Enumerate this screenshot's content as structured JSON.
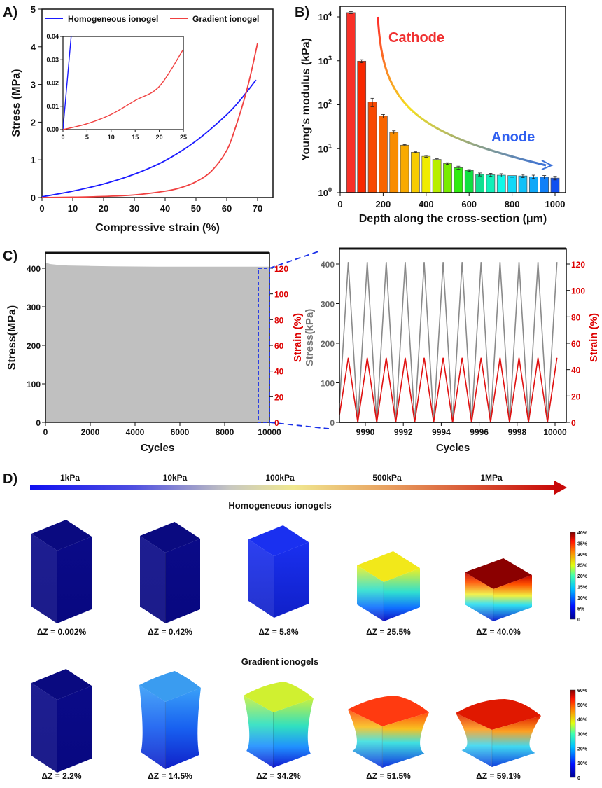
{
  "panel_labels": {
    "a": "A)",
    "b": "B)",
    "c": "C)",
    "d": "D)"
  },
  "chart_data": [
    {
      "id": "A",
      "type": "line",
      "xlabel": "Compressive strain (%)",
      "ylabel": "Stress (MPa)",
      "xlim": [
        0,
        75
      ],
      "ylim": [
        0,
        5
      ],
      "xticks": [
        0,
        10,
        20,
        30,
        40,
        50,
        60,
        70
      ],
      "yticks": [
        0,
        1,
        2,
        3,
        4,
        5
      ],
      "legend_position": "top",
      "series": [
        {
          "name": "Homogeneous ionogel",
          "color": "#1a1aff",
          "x": [
            0,
            10,
            20,
            30,
            40,
            50,
            60,
            65,
            69.5
          ],
          "y": [
            0.02,
            0.17,
            0.36,
            0.62,
            0.98,
            1.5,
            2.2,
            2.65,
            3.12
          ]
        },
        {
          "name": "Gradient ionogel",
          "color": "#f04040",
          "x": [
            0,
            10,
            20,
            30,
            40,
            45,
            50,
            55,
            60,
            63,
            66,
            68,
            70
          ],
          "y": [
            0,
            0.01,
            0.03,
            0.07,
            0.17,
            0.26,
            0.42,
            0.7,
            1.25,
            1.9,
            2.7,
            3.35,
            4.1
          ]
        }
      ],
      "inset": {
        "xlim": [
          0,
          25
        ],
        "ylim": [
          0,
          0.04
        ],
        "xticks": [
          0,
          5,
          10,
          15,
          20,
          25
        ],
        "yticks": [
          "0.00",
          "0.01",
          "0.02",
          "0.03",
          "0.04"
        ],
        "series": [
          {
            "name": "Homogeneous ionogel",
            "x": [
              0,
              1.7
            ],
            "y": [
              0,
              0.04
            ]
          },
          {
            "name": "Gradient ionogel",
            "x": [
              0,
              5,
              10,
              15,
              20,
              25
            ],
            "y": [
              0,
              0.0025,
              0.0065,
              0.0125,
              0.0185,
              0.0345
            ]
          }
        ]
      }
    },
    {
      "id": "B",
      "type": "bar",
      "xlabel": "Depth along the cross-section (μm)",
      "ylabel": "Young's modulus (kPa)",
      "yscale": "log",
      "xlim": [
        0,
        1050
      ],
      "ylim": [
        1,
        17000
      ],
      "xticks": [
        0,
        200,
        400,
        600,
        800,
        1000
      ],
      "yticks": [
        {
          "base": "10",
          "exp": "0"
        },
        {
          "base": "10",
          "exp": "1"
        },
        {
          "base": "10",
          "exp": "2"
        },
        {
          "base": "10",
          "exp": "3"
        },
        {
          "base": "10",
          "exp": "4"
        }
      ],
      "x": [
        50,
        100,
        150,
        200,
        250,
        300,
        350,
        400,
        450,
        500,
        550,
        600,
        650,
        700,
        750,
        800,
        850,
        900,
        950,
        1000
      ],
      "values": [
        12500,
        980,
        115,
        55,
        23.5,
        12,
        8.3,
        6.7,
        5.7,
        4.6,
        3.7,
        3.2,
        2.6,
        2.55,
        2.5,
        2.45,
        2.4,
        2.3,
        2.25,
        2.15
      ],
      "errors": [
        700,
        80,
        25,
        5,
        2,
        0.4,
        0.2,
        0.3,
        0.2,
        0.2,
        0.3,
        0.15,
        0.2,
        0.2,
        0.2,
        0.2,
        0.2,
        0.2,
        0.2,
        0.2
      ],
      "colors": [
        "#f83028",
        "#f82800",
        "#f84800",
        "#f86400",
        "#f88c00",
        "#f8aa00",
        "#f8cc00",
        "#f0ec00",
        "#b8ee00",
        "#78ec00",
        "#30ec10",
        "#10e040",
        "#10e090",
        "#10f0b8",
        "#10f8e8",
        "#10d8f8",
        "#10c0f8",
        "#10a8f8",
        "#1080f8",
        "#1050f0"
      ],
      "annotations": [
        {
          "text": "Cathode",
          "color": "#f03030"
        },
        {
          "text": "Anode",
          "color": "#2f5ff0"
        }
      ]
    },
    {
      "id": "C-left",
      "type": "area",
      "xlabel": "Cycles",
      "ylabel": "Stress(MPa)",
      "y2label": "Strain (%)",
      "xlim": [
        0,
        10000
      ],
      "ylim": [
        0,
        440
      ],
      "y2lim": [
        0,
        132
      ],
      "xticks": [
        0,
        2000,
        4000,
        6000,
        8000,
        10000
      ],
      "yticks": [
        0,
        100,
        200,
        300,
        400
      ],
      "y2ticks": [
        0,
        20,
        40,
        60,
        80,
        100,
        120
      ],
      "series": [
        {
          "name": "Stress envelope",
          "color": "#c0c0c0",
          "x": [
            0,
            200,
            500,
            1000,
            2000,
            3000,
            5000,
            7000,
            9500
          ],
          "y": [
            415,
            411,
            409,
            407,
            406,
            405,
            404,
            404,
            404
          ]
        }
      ],
      "highlight_range": [
        9500,
        10000
      ]
    },
    {
      "id": "C-right",
      "type": "line",
      "xlabel": "Cycles",
      "ylabel": "Stress(kPa)",
      "y2label": "Strain (%)",
      "xlim": [
        9988.64,
        10000.6
      ],
      "ylim": [
        0,
        440
      ],
      "y2lim": [
        0,
        132
      ],
      "xticks": [
        9990,
        9992,
        9994,
        9996,
        9998,
        10000
      ],
      "yticks": [
        0,
        100,
        200,
        300,
        400
      ],
      "y2ticks": [
        0,
        20,
        40,
        60,
        80,
        100,
        120
      ],
      "cycle_peaks": [
        9989.1,
        9990.1,
        9991.1,
        9992.1,
        9993.1,
        9994.1,
        9995.1,
        9996.1,
        9997.1,
        9998.1,
        9999.1,
        10000.1
      ],
      "series": [
        {
          "name": "Stress",
          "color": "#8a8a8a",
          "peak": 405,
          "min": 0
        },
        {
          "name": "Strain",
          "color": "#e01010",
          "peak": 49,
          "min": 0
        }
      ]
    }
  ],
  "panel_d": {
    "scale_labels": [
      "1kPa",
      "10kPa",
      "100kPa",
      "500kPa",
      "1MPa"
    ],
    "homogeneous": {
      "title": "Homogeneous ionogels",
      "labels": [
        "ΔZ = 0.002%",
        "ΔZ = 0.42%",
        "ΔZ = 5.8%",
        "ΔZ = 25.5%",
        "ΔZ = 40.0%"
      ],
      "colorbar": [
        "40%",
        "35%",
        "30%",
        "25%",
        "20%",
        "15%",
        "10%",
        "5%-",
        "0"
      ]
    },
    "gradient": {
      "title": "Gradient ionogels",
      "labels": [
        "ΔZ = 2.2%",
        "ΔZ = 14.5%",
        "ΔZ = 34.2%",
        "ΔZ = 51.5%",
        "ΔZ = 59.1%"
      ],
      "colorbar": [
        "60%",
        "50%",
        "40%",
        "30%",
        "20%",
        "10%",
        "0"
      ]
    }
  }
}
